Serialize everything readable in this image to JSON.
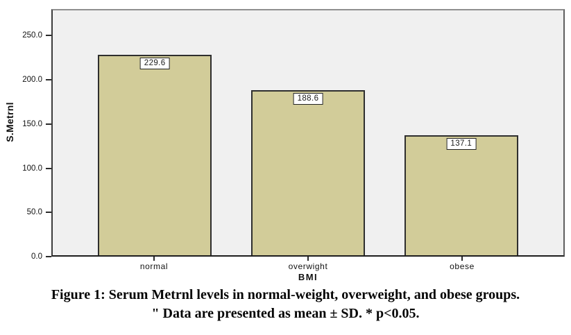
{
  "figure": {
    "caption_line1": "Figure 1: Serum Metrnl levels in normal-weight, overweight, and obese groups.",
    "caption_line2": "\" Data are presented as mean ± SD. * p<0.05."
  },
  "chart_data": {
    "type": "bar",
    "title": "",
    "categories": [
      "normal",
      "overwight",
      "obese"
    ],
    "values": [
      229.6,
      188.6,
      137.1
    ],
    "bar_labels": [
      "229.6",
      "188.6",
      "137.1"
    ],
    "xlabel": "BMI",
    "ylabel": "S.Metrnl",
    "ylim": [
      0,
      280
    ],
    "yticks": [
      0,
      50,
      100,
      150,
      200,
      250
    ],
    "ytick_labels": [
      "0.0",
      "50.0",
      "100.0",
      "150.0",
      "200.0",
      "250.0"
    ],
    "grid": false,
    "legend": "none",
    "colors": {
      "plot_bg": "#F0F0F0",
      "bar_fill": "#D2CC99",
      "bar_border": "#2E2E2E",
      "label_box_bg": "#FFFFFF",
      "label_box_border": "#222222"
    }
  }
}
